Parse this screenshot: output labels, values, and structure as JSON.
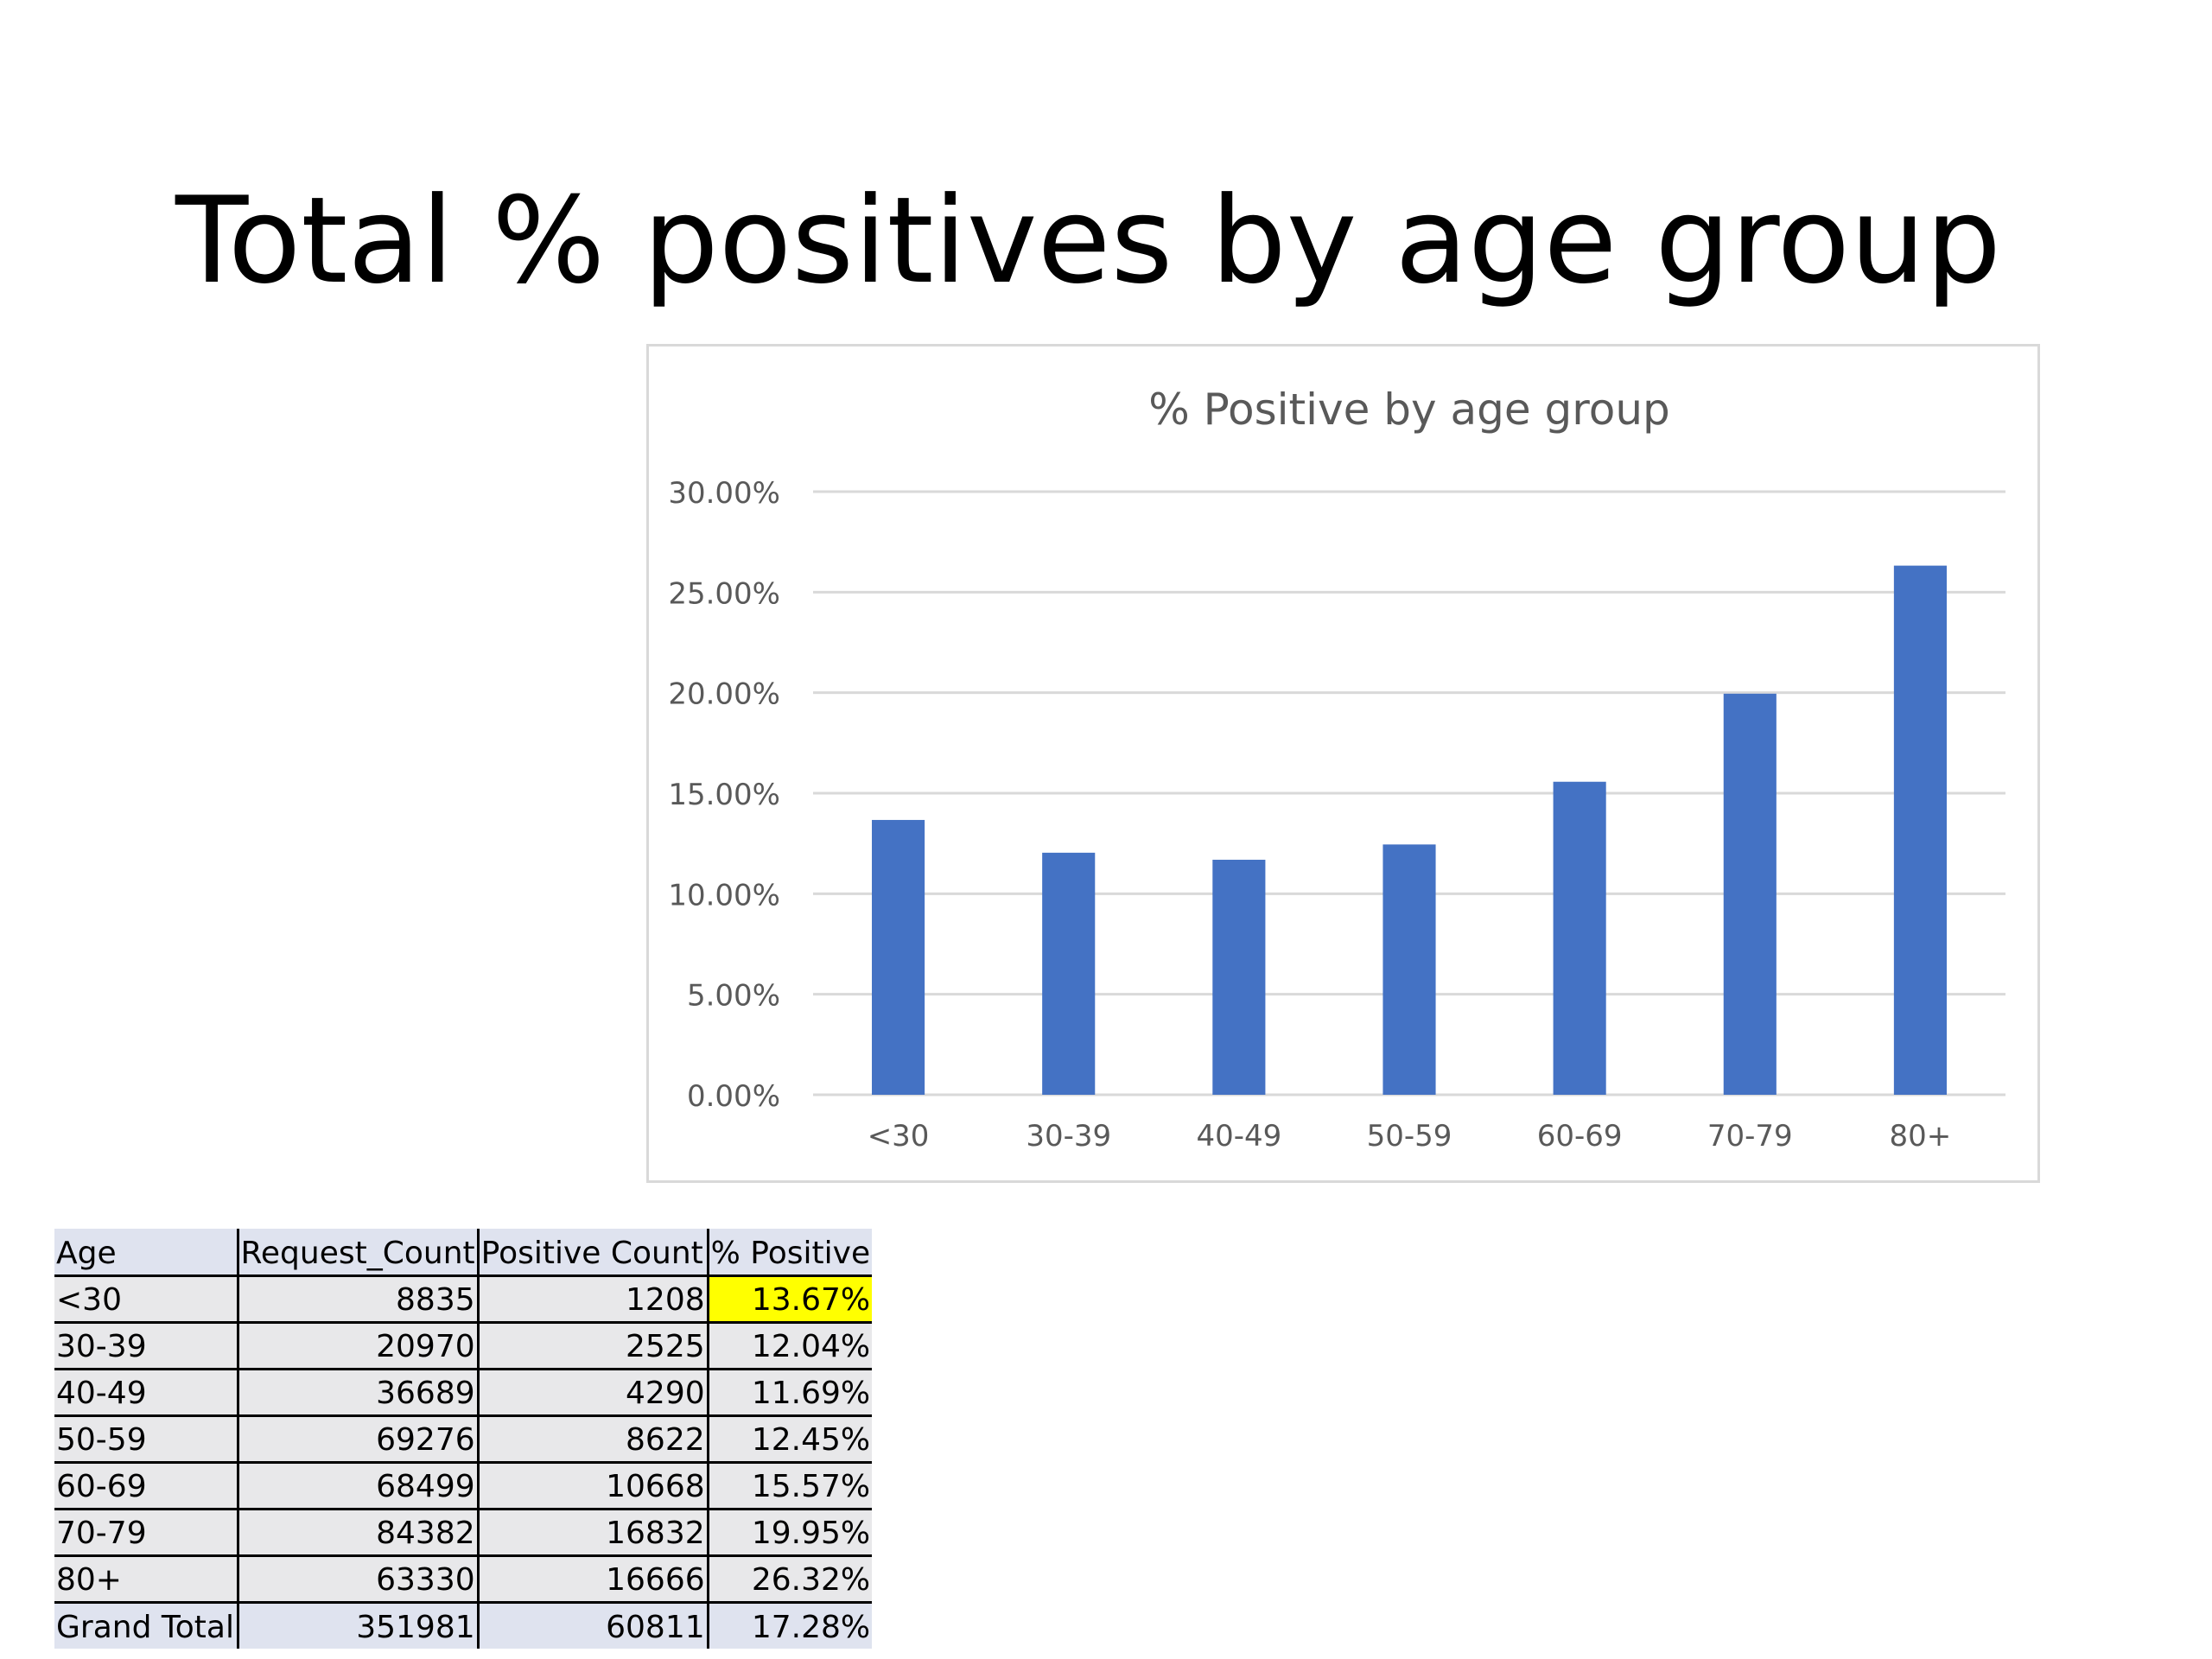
{
  "slide": {
    "title": "Total % positives by age group"
  },
  "colors": {
    "bar": "#4472c4",
    "gridline": "#d9d9d9",
    "axis_text": "#595959",
    "highlight": "#ffff00"
  },
  "chart_data": {
    "type": "bar",
    "title": "% Positive by age group",
    "xlabel": "",
    "ylabel": "",
    "categories": [
      "<30",
      "30-39",
      "40-49",
      "50-59",
      "60-69",
      "70-79",
      "80+"
    ],
    "values": [
      13.67,
      12.04,
      11.69,
      12.45,
      15.57,
      19.95,
      26.32
    ],
    "value_unit": "%",
    "ylim": [
      0,
      30
    ],
    "yticks": [
      0,
      5,
      10,
      15,
      20,
      25,
      30
    ],
    "ytick_labels": [
      "0.00%",
      "5.00%",
      "10.00%",
      "15.00%",
      "20.00%",
      "25.00%",
      "30.00%"
    ],
    "grid": true,
    "legend": "none"
  },
  "table": {
    "headers": [
      "Age",
      "Request_Count",
      "Positive Count",
      "% Positive"
    ],
    "rows": [
      [
        "<30",
        "8835",
        "1208",
        "13.67%"
      ],
      [
        "30-39",
        "20970",
        "2525",
        "12.04%"
      ],
      [
        "40-49",
        "36689",
        "4290",
        "11.69%"
      ],
      [
        "50-59",
        "69276",
        "8622",
        "12.45%"
      ],
      [
        "60-69",
        "68499",
        "10668",
        "15.57%"
      ],
      [
        "70-79",
        "84382",
        "16832",
        "19.95%"
      ],
      [
        "80+",
        "63330",
        "16666",
        "26.32%"
      ]
    ],
    "total": [
      "Grand Total",
      "351981",
      "60811",
      "17.28%"
    ],
    "highlighted_cell": "<30 / % Positive"
  }
}
